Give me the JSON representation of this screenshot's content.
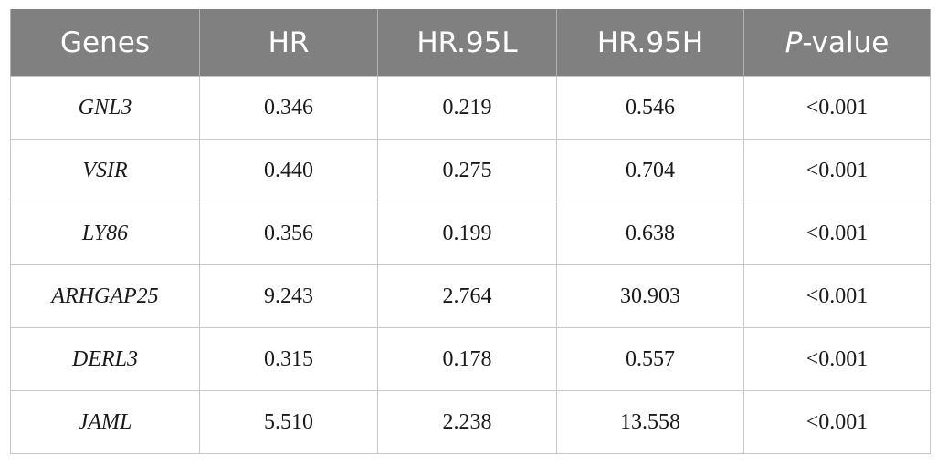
{
  "table": {
    "headers": {
      "genes": "Genes",
      "hr": "HR",
      "hr95l": "HR.95L",
      "hr95h": "HR.95H",
      "p_prefix": "P",
      "p_suffix": "-value"
    },
    "rows": [
      {
        "gene": "GNL3",
        "hr": "0.346",
        "hr95l": "0.219",
        "hr95h": "0.546",
        "p": "<0.001"
      },
      {
        "gene": "VSIR",
        "hr": "0.440",
        "hr95l": "0.275",
        "hr95h": "0.704",
        "p": "<0.001"
      },
      {
        "gene": "LY86",
        "hr": "0.356",
        "hr95l": "0.199",
        "hr95h": "0.638",
        "p": "<0.001"
      },
      {
        "gene": "ARHGAP25",
        "hr": "9.243",
        "hr95l": "2.764",
        "hr95h": "30.903",
        "p": "<0.001"
      },
      {
        "gene": "DERL3",
        "hr": "0.315",
        "hr95l": "0.178",
        "hr95h": "0.557",
        "p": "<0.001"
      },
      {
        "gene": "JAML",
        "hr": "5.510",
        "hr95l": "2.238",
        "hr95h": "13.558",
        "p": "<0.001"
      }
    ]
  },
  "colors": {
    "header_bg": "#808080",
    "header_text": "#ffffff",
    "grid": "#c8c8c8"
  }
}
